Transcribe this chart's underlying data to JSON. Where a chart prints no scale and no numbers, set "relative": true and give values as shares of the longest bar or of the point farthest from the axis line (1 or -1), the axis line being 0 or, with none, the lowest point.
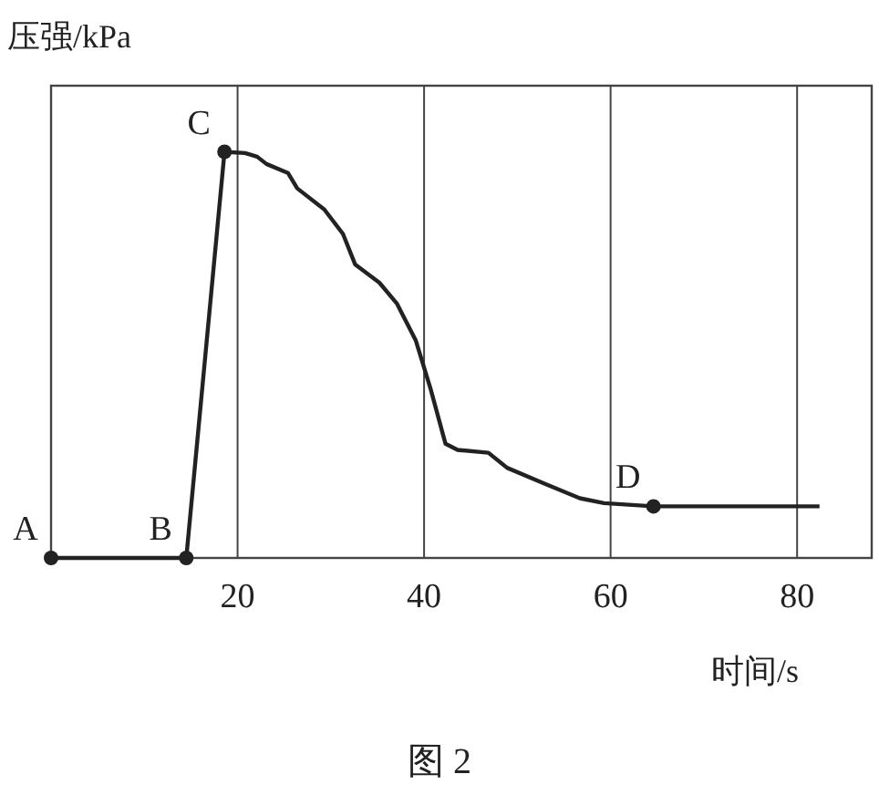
{
  "chart_data": {
    "type": "line",
    "relative": true,
    "ylabel": "压强/kPa",
    "xlabel": "时间/s",
    "xlim": [
      0,
      88
    ],
    "xticks": [
      20,
      40,
      60,
      80
    ],
    "grid": "x",
    "marker": "none",
    "line_style": "solid",
    "series": [
      {
        "color": "#222222",
        "x": [
          0,
          14.5,
          18.6,
          20.8,
          22.1,
          23.1,
          25.4,
          26.4,
          29.3,
          31.3,
          32.6,
          35.2,
          37.1,
          39.1,
          40.7,
          42.3,
          43.6,
          46.9,
          48.9,
          52.8,
          56.7,
          59.3,
          64.6,
          82.4
        ],
        "values": [
          0,
          0,
          1.0,
          0.997,
          0.988,
          0.97,
          0.948,
          0.91,
          0.858,
          0.798,
          0.723,
          0.678,
          0.626,
          0.536,
          0.416,
          0.281,
          0.266,
          0.259,
          0.222,
          0.184,
          0.147,
          0.135,
          0.127,
          0.127
        ]
      }
    ],
    "annotations": [
      {
        "text": "A",
        "x": 0,
        "y": 0
      },
      {
        "text": "B",
        "x": 14.5,
        "y": 0
      },
      {
        "text": "C",
        "x": 18.6,
        "y": 1.0
      },
      {
        "text": "D",
        "x": 64.6,
        "y": 0.127
      },
      "图 2"
    ]
  }
}
